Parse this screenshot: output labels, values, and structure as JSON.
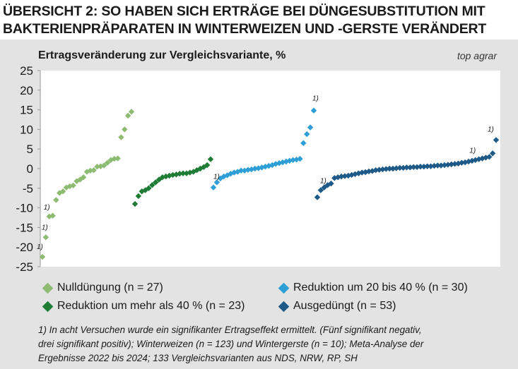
{
  "title_line1": "ÜBERSICHT 2: SO HABEN SICH ERTRÄGE BEI DÜNGESUBSTITUTION MIT",
  "title_line2": "BAKTERIENPRÄPARATEN IN WINTERWEIZEN UND -GERSTE VERÄNDERT",
  "subtitle": "Ertragsveränderung zur Vergleichsvariante, %",
  "source": "top agrar",
  "footnote_mark": "1)",
  "footnote_lines": [
    "1) In acht Versuchen wurde ein signifikanter Ertragseffekt ermittelt. (Fünf signifikant negativ,",
    "drei signifikant positiv); Winterweizen (n = 123) und Wintergerste (n = 10); Meta-Analyse der",
    "Ergebnisse 2022 bis 2024; 133 Vergleichsvarianten aus NDS, NRW, RP, SH"
  ],
  "chart_data": {
    "type": "scatter",
    "ylim": [
      -25,
      25
    ],
    "yticks": [
      "25",
      "20",
      "15",
      "10",
      "5",
      "0",
      "-5",
      "-10",
      "-15",
      "-20",
      "-25"
    ],
    "grid": false,
    "legend_position": "bottom",
    "series": [
      {
        "name": "Nulldüngung (n = 27)",
        "color": "#8dbb72",
        "values": [
          -22.5,
          -17.5,
          -12.2,
          -12.0,
          -8.0,
          -6.2,
          -5.8,
          -4.8,
          -4.5,
          -4.3,
          -3.2,
          -2.8,
          -2.2,
          -0.8,
          -0.5,
          -0.4,
          0.5,
          0.6,
          0.8,
          1.5,
          2.2,
          2.5,
          2.6,
          8.0,
          10.0,
          13.5,
          14.5
        ]
      },
      {
        "name": "Reduktion um mehr als 40 % (n = 23)",
        "color": "#1e7c35",
        "values": [
          -9.0,
          -7.0,
          -5.8,
          -5.5,
          -5.0,
          -4.2,
          -3.5,
          -2.8,
          -2.2,
          -2.0,
          -1.8,
          -1.6,
          -1.5,
          -1.3,
          -1.2,
          -1.2,
          -1.0,
          -0.8,
          -0.4,
          0.0,
          0.4,
          0.9,
          2.4
        ]
      },
      {
        "name": "Reduktion um 20 bis 40 % (n = 30)",
        "color": "#2d9fd6",
        "values": [
          -4.8,
          -3.5,
          -2.5,
          -2.0,
          -1.7,
          -1.3,
          -1.0,
          -0.8,
          -0.5,
          -0.5,
          -0.3,
          -0.2,
          0.0,
          0.1,
          0.3,
          0.5,
          0.7,
          0.9,
          1.2,
          1.4,
          1.6,
          1.8,
          2.0,
          2.2,
          2.3,
          2.5,
          6.5,
          8.8,
          10.5,
          14.8
        ]
      },
      {
        "name": "Ausgedüngt (n = 53)",
        "color": "#1e5a87",
        "values": [
          -7.3,
          -5.5,
          -4.8,
          -4.2,
          -3.8,
          -2.4,
          -2.2,
          -2.0,
          -1.9,
          -1.8,
          -1.6,
          -1.4,
          -1.2,
          -1.0,
          -0.9,
          -0.7,
          -0.6,
          -0.4,
          -0.3,
          -0.2,
          -0.1,
          0.0,
          0.0,
          0.1,
          0.2,
          0.2,
          0.3,
          0.3,
          0.4,
          0.4,
          0.5,
          0.5,
          0.6,
          0.6,
          0.7,
          0.8,
          0.8,
          0.9,
          1.0,
          1.1,
          1.2,
          1.3,
          1.5,
          1.6,
          1.8,
          2.0,
          2.2,
          2.4,
          2.6,
          2.8,
          3.0,
          3.9,
          7.3
        ]
      }
    ],
    "footnote_markers": [
      {
        "series": 0,
        "index": 0
      },
      {
        "series": 0,
        "index": 1
      },
      {
        "series": 0,
        "index": 2
      },
      {
        "series": 2,
        "index": 0
      },
      {
        "series": 2,
        "index": 29
      },
      {
        "series": 3,
        "index": 0
      },
      {
        "series": 3,
        "index": 50
      },
      {
        "series": 3,
        "index": 52
      }
    ]
  }
}
